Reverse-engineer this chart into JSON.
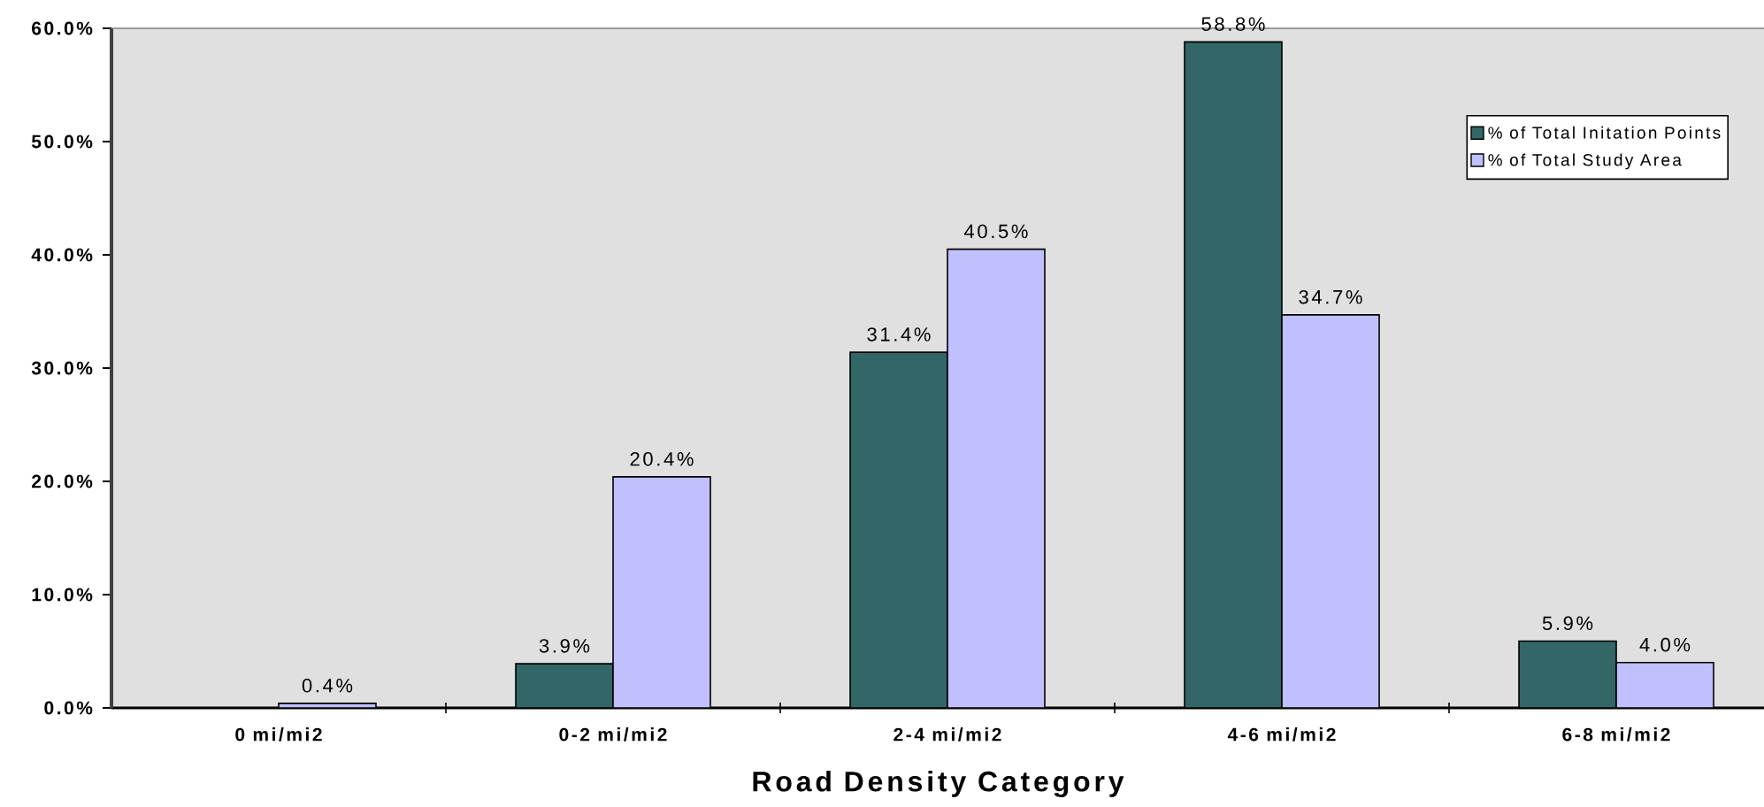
{
  "chart_data": {
    "type": "bar",
    "xlabel": "Road Density Category",
    "categories": [
      "0 mi/mi2",
      "0-2 mi/mi2",
      "2-4 mi/mi2",
      "4-6 mi/mi2",
      "6-8 mi/mi2"
    ],
    "series": [
      {
        "name": "% of Total Initation Points",
        "color": "#336666",
        "values": [
          null,
          3.9,
          31.4,
          58.8,
          5.9
        ],
        "value_labels": [
          null,
          "3.9%",
          "31.4%",
          "58.8%",
          "5.9%"
        ]
      },
      {
        "name": "% of Total Study Area",
        "color": "#c0c0ff",
        "values": [
          0.4,
          20.4,
          40.5,
          34.7,
          4.0
        ],
        "value_labels": [
          "0.4%",
          "20.4%",
          "40.5%",
          "34.7%",
          "4.0%"
        ]
      }
    ],
    "ylim": [
      0,
      60
    ],
    "yticks": [
      {
        "value": 0,
        "label": "0.0%"
      },
      {
        "value": 10,
        "label": "10.0%"
      },
      {
        "value": 20,
        "label": "20.0%"
      },
      {
        "value": 30,
        "label": "30.0%"
      },
      {
        "value": 40,
        "label": "40.0%"
      },
      {
        "value": 50,
        "label": "50.0%"
      },
      {
        "value": 60,
        "label": "60.0%"
      }
    ],
    "legend": "top right"
  }
}
